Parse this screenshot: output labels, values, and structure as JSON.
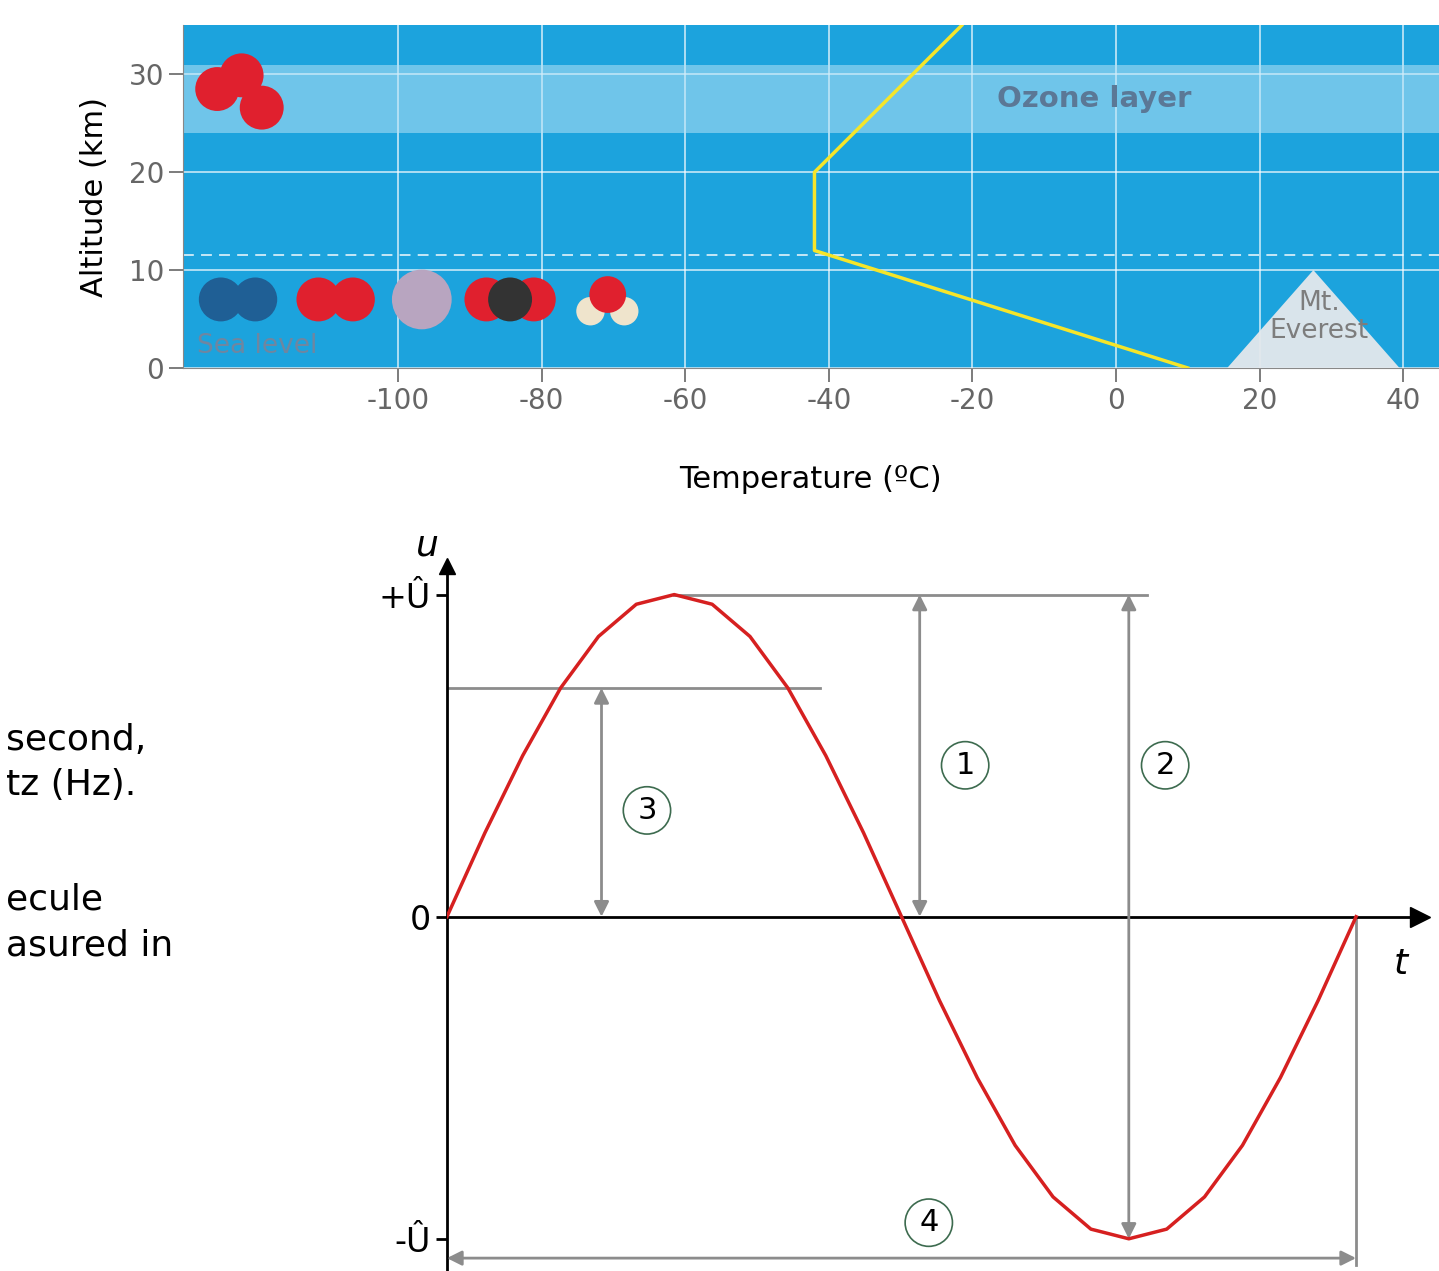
{
  "chart_data": [
    {
      "type": "line",
      "xlabel": "Temperature (ºC)",
      "ylabel": "Altitude (km)",
      "x": [
        10,
        -42,
        -42,
        -21.5
      ],
      "values": [
        0,
        12,
        20,
        35
      ],
      "color": "#f5e52a",
      "xlim": [
        -130,
        45
      ],
      "xticks": [
        -100,
        -80,
        -60,
        -40,
        -20,
        0,
        20,
        40
      ],
      "ylim": [
        0,
        35
      ],
      "yticks": [
        0,
        10,
        20,
        30
      ],
      "grid": true,
      "bands": [
        {
          "label": "Ozone layer",
          "range": [
            24,
            31
          ],
          "label_x": -3
        }
      ],
      "dashed_lines": [
        11.5
      ],
      "annotations": [
        {
          "text": "Sea level",
          "x": -128,
          "y": 2.2,
          "kind": "text"
        },
        {
          "text": "Mt.\nEverest",
          "x": 27.5,
          "y": 10,
          "kind": "mountain"
        }
      ]
    },
    {
      "type": "line",
      "xlabel": "t",
      "ylabel": "u",
      "x": [
        0,
        0.0417,
        0.0833,
        0.125,
        0.1667,
        0.2083,
        0.25,
        0.2917,
        0.3333,
        0.375,
        0.4167,
        0.4583,
        0.5,
        0.5417,
        0.5833,
        0.625,
        0.6667,
        0.7083,
        0.75,
        0.7917,
        0.8333,
        0.875,
        0.9167,
        0.9583,
        1
      ],
      "values": [
        0,
        0.26,
        0.5,
        0.71,
        0.87,
        0.97,
        1,
        0.97,
        0.87,
        0.71,
        0.5,
        0.26,
        0,
        -0.26,
        -0.5,
        -0.71,
        -0.87,
        -0.97,
        -1,
        -0.97,
        -0.87,
        -0.71,
        -0.5,
        -0.26,
        0
      ],
      "color": "#d62020",
      "xlim": [
        0,
        1.07
      ],
      "xticks": [],
      "ylim": [
        -1.1,
        1.09
      ],
      "yticks": [
        {
          "value": 1,
          "label": "+Û"
        },
        0,
        {
          "value": -1,
          "label": "-Û"
        }
      ],
      "tick_labels": "y",
      "dimensions": [
        {
          "label": "1",
          "x": 0.52,
          "from": 0,
          "to": 1,
          "label_x": 0.57,
          "label_y": 0.47
        },
        {
          "label": "2",
          "x": 0.75,
          "from": -1,
          "to": 1,
          "label_x": 0.79,
          "label_y": 0.47
        },
        {
          "label": "3",
          "x": 0.17,
          "from": 0,
          "to": 0.71,
          "label_x": 0.22,
          "label_y": 0.33
        }
      ],
      "spans": [
        {
          "label": "4",
          "y": -1.06,
          "from": 0,
          "to": 1,
          "label_x": 0.53,
          "label_y": -0.95
        }
      ],
      "guides": [
        {
          "y": 1,
          "from": 0.25,
          "to": 0.77
        },
        {
          "y": 0.71,
          "from": 0,
          "to": 0.41
        }
      ],
      "drops": [
        {
          "x": 1,
          "from": 0,
          "to": -1.08
        }
      ]
    }
  ],
  "text_fragments": [
    "second,",
    "tz (Hz).",
    "ecule",
    "asured in"
  ]
}
